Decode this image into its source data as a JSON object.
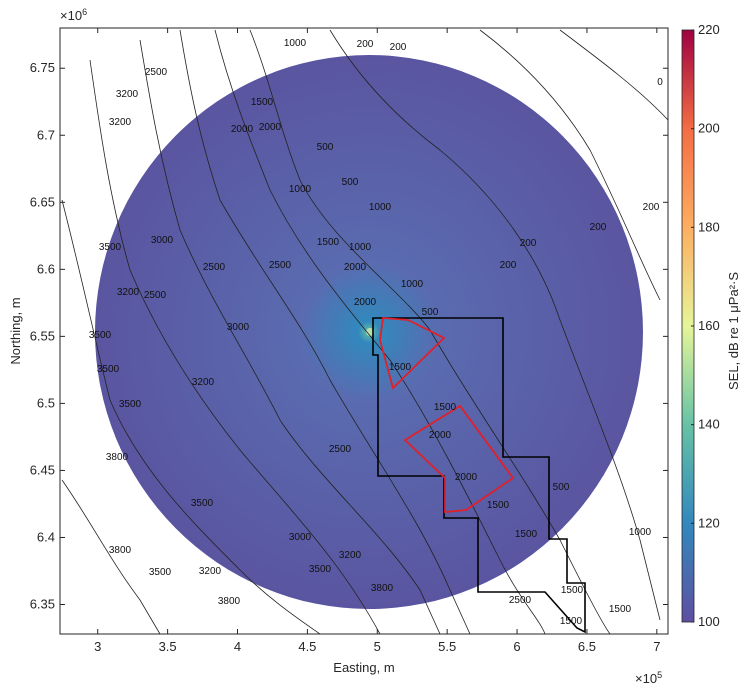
{
  "chart_data": {
    "type": "map",
    "xlabel": "Easting, m",
    "ylabel": "Northing, m",
    "x_exponent": "×10",
    "x_exponent_power": "5",
    "y_exponent": "×10",
    "y_exponent_power": "6",
    "xlim": [
      273000,
      708000
    ],
    "xticks": [
      {
        "value": 300000,
        "label": "3"
      },
      {
        "value": 350000,
        "label": "3.5"
      },
      {
        "value": 400000,
        "label": "4"
      },
      {
        "value": 450000,
        "label": "4.5"
      },
      {
        "value": 500000,
        "label": "5"
      },
      {
        "value": 550000,
        "label": "5.5"
      },
      {
        "value": 600000,
        "label": "6"
      },
      {
        "value": 650000,
        "label": "6.5"
      },
      {
        "value": 700000,
        "label": "7"
      }
    ],
    "ylim": [
      6328000,
      6780000
    ],
    "yticks": [
      {
        "value": 6350000,
        "label": "6.35"
      },
      {
        "value": 6400000,
        "label": "6.4"
      },
      {
        "value": 6450000,
        "label": "6.45"
      },
      {
        "value": 6500000,
        "label": "6.5"
      },
      {
        "value": 6550000,
        "label": "6.55"
      },
      {
        "value": 6600000,
        "label": "6.6"
      },
      {
        "value": 6650000,
        "label": "6.65"
      },
      {
        "value": 6700000,
        "label": "6.7"
      },
      {
        "value": 6750000,
        "label": "6.75"
      }
    ],
    "colorbar": {
      "label": "SEL, dB re 1 μPa²·S",
      "lim": [
        100,
        220
      ],
      "ticks": [
        100,
        120,
        140,
        160,
        180,
        200,
        220
      ],
      "colormap": [
        "#5e4fa2",
        "#3288bd",
        "#66c2a5",
        "#e6f598",
        "#fdae61",
        "#f46d43",
        "#9e0142"
      ]
    },
    "contour_labels": [
      1000,
      200,
      200,
      2500,
      3200,
      3200,
      2000,
      2000,
      1500,
      500,
      1000,
      500,
      1000,
      1500,
      1000,
      2000,
      1000,
      500,
      3500,
      3200,
      2500,
      3000,
      2500,
      2500,
      2000,
      1500,
      1500,
      2000,
      2500,
      3000,
      3200,
      3500,
      3500,
      3500,
      3800,
      3000,
      3200,
      3500,
      3800,
      3800,
      3800,
      2000,
      1500,
      1500,
      500,
      1500,
      2500,
      1500,
      3500,
      3500,
      3200,
      1000,
      1500,
      0,
      200,
      200,
      200,
      200
    ]
  }
}
